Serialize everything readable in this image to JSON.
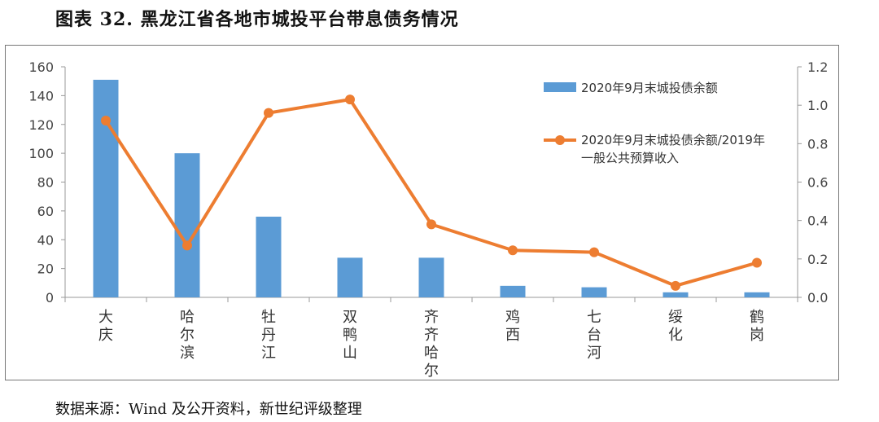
{
  "title": "图表 32. 黑龙江省各地市城投平台带息债务情况",
  "source": "数据来源：Wind 及公开资料，新世纪评级整理",
  "chart_data": {
    "type": "bar+line",
    "categories": [
      "大庆",
      "哈尔滨",
      "牡丹江",
      "双鸭山",
      "齐齐哈尔",
      "鸡西",
      "七台河",
      "绥化",
      "鹤岗"
    ],
    "series": [
      {
        "name": "2020年9月末城投债余额",
        "type": "bar",
        "axis": "left",
        "values": [
          151,
          100,
          56,
          27.5,
          27.5,
          8,
          7,
          3.5,
          3.5
        ],
        "color": "#5b9bd5"
      },
      {
        "name": "2020年9月末城投债余额/2019年一般公共预算收入",
        "type": "line",
        "axis": "right",
        "values": [
          0.92,
          0.27,
          0.96,
          1.03,
          0.38,
          0.245,
          0.235,
          0.06,
          0.18
        ],
        "color": "#ed7d31"
      }
    ],
    "ylim_left": [
      0,
      160
    ],
    "yticks_left": [
      "0",
      "20",
      "40",
      "60",
      "80",
      "100",
      "120",
      "140",
      "160"
    ],
    "ylim_right": [
      0,
      1.2
    ],
    "yticks_right": [
      "0.0",
      "0.2",
      "0.4",
      "0.6",
      "0.8",
      "1.0",
      "1.2"
    ],
    "legend_position": "top-right",
    "grid": false
  }
}
